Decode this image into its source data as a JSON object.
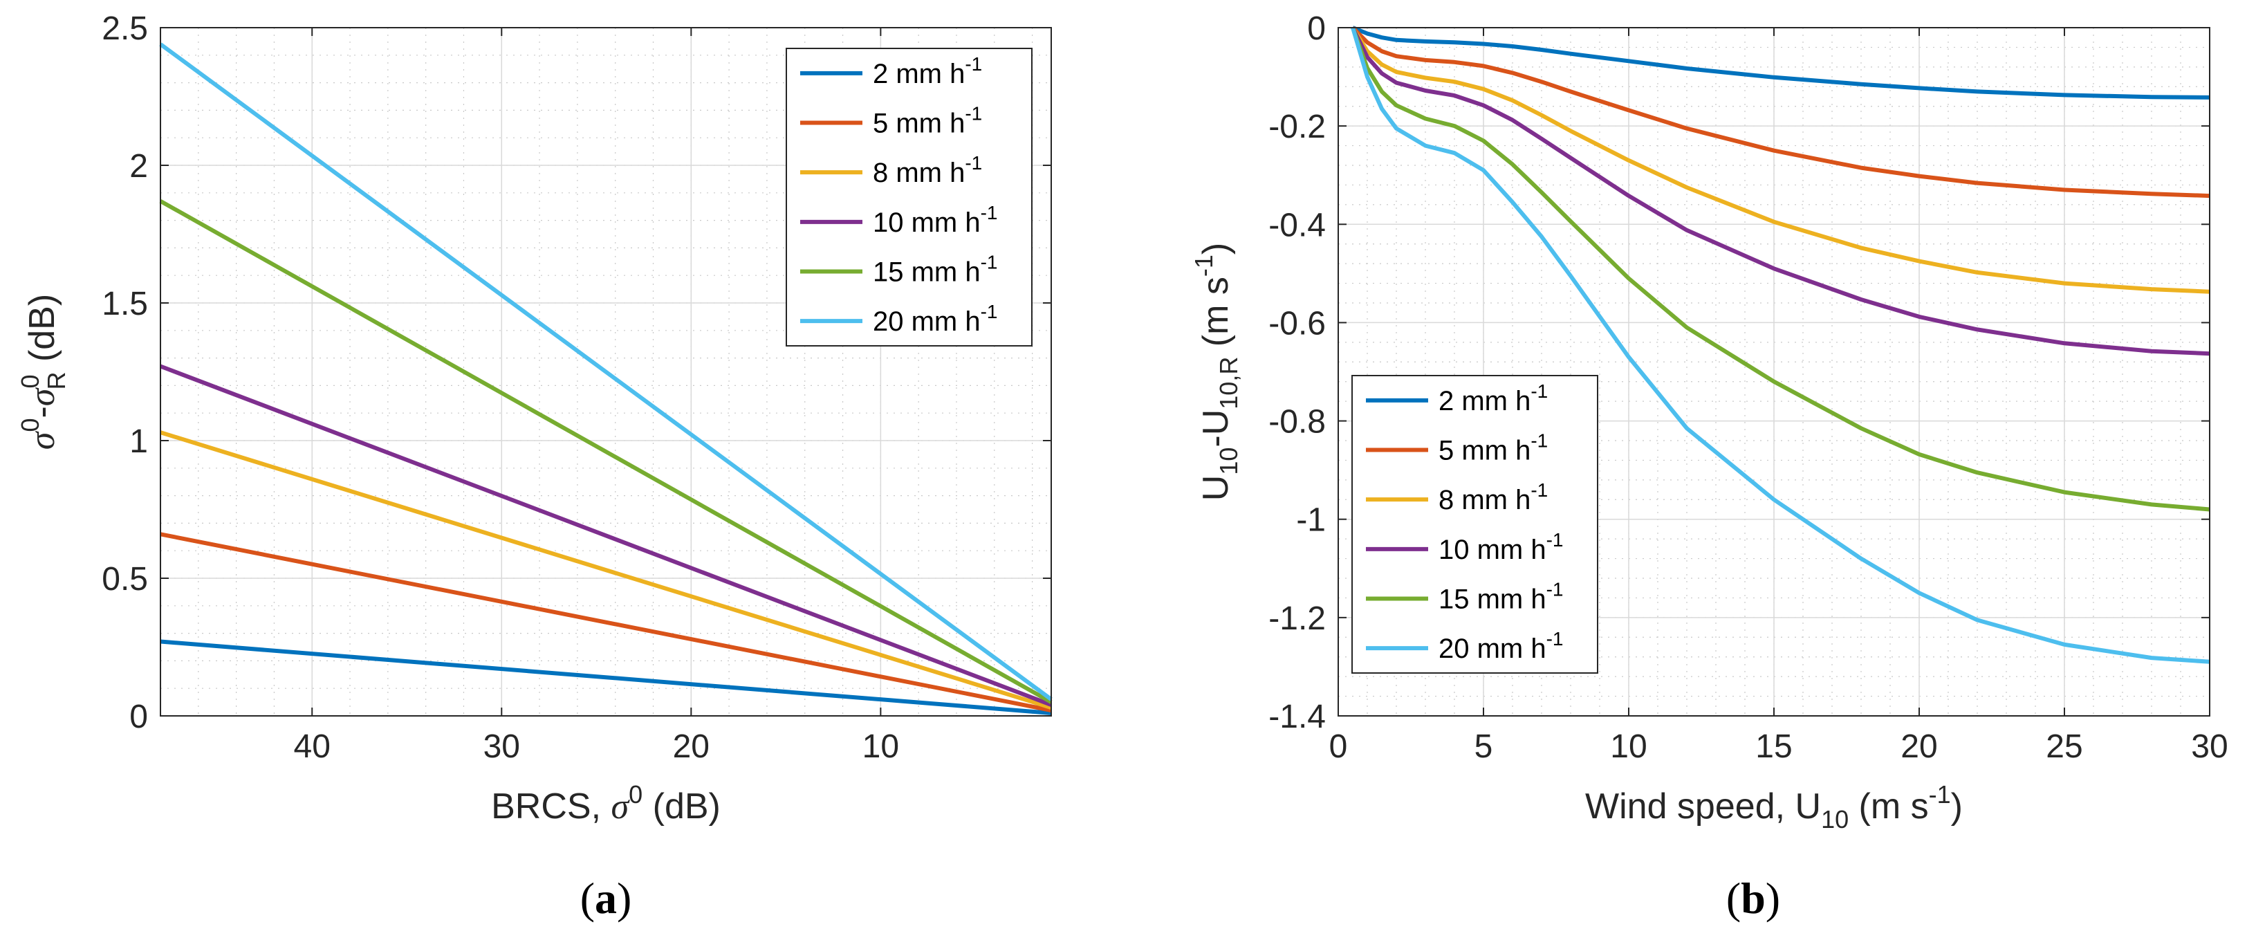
{
  "colors": {
    "2": "#0072BD",
    "5": "#D95319",
    "8": "#EDB120",
    "10": "#7E2F8E",
    "15": "#77AC30",
    "20": "#4DBEEE"
  },
  "chart_data": [
    {
      "type": "line",
      "panel_label": "a",
      "xlabel": {
        "main": "BRCS, ",
        "sym": "σ",
        "sup": "0",
        "post": " (dB)"
      },
      "ylabel": {
        "sym1": "σ",
        "sup1": "0",
        "mid": "-",
        "sym2": "σ",
        "sup2": "0",
        "sub2": "R",
        "post": " (dB)"
      },
      "xlim": [
        1,
        48
      ],
      "x_reversed": true,
      "ylim": [
        0,
        2.5
      ],
      "xticks": [
        40,
        30,
        20,
        10
      ],
      "yticks": [
        0,
        0.5,
        1,
        1.5,
        2,
        2.5
      ],
      "xtick_labels": [
        "40",
        "30",
        "20",
        "10"
      ],
      "ytick_labels": [
        "0",
        "0.5",
        "1",
        "1.5",
        "2",
        "2.5"
      ],
      "grid": true,
      "minor_grid": true,
      "legend_position": "top-right",
      "series": [
        {
          "name": "2 mm h",
          "sup": "-1",
          "key": "2",
          "x": [
            48,
            1
          ],
          "y": [
            0.27,
            0.01
          ]
        },
        {
          "name": "5 mm h",
          "sup": "-1",
          "key": "5",
          "x": [
            48,
            1
          ],
          "y": [
            0.66,
            0.02
          ]
        },
        {
          "name": "8 mm h",
          "sup": "-1",
          "key": "8",
          "x": [
            48,
            1
          ],
          "y": [
            1.03,
            0.03
          ]
        },
        {
          "name": "10 mm h",
          "sup": "-1",
          "key": "10",
          "x": [
            48,
            1
          ],
          "y": [
            1.27,
            0.04
          ]
        },
        {
          "name": "15 mm h",
          "sup": "-1",
          "key": "15",
          "x": [
            48,
            1
          ],
          "y": [
            1.87,
            0.05
          ]
        },
        {
          "name": "20 mm h",
          "sup": "-1",
          "key": "20",
          "x": [
            48,
            1
          ],
          "y": [
            2.44,
            0.06
          ]
        }
      ]
    },
    {
      "type": "line",
      "panel_label": "b",
      "xlabel": {
        "main": "Wind speed, U",
        "sub": "10",
        "mid": " (m s",
        "sup": "-1",
        "post": ")"
      },
      "ylabel": {
        "main": "U",
        "sub1": "10",
        "mid": "-U",
        "sub2": "10,R",
        "post1": " (m s",
        "sup": "-1",
        "post2": ")"
      },
      "xlim": [
        0,
        30
      ],
      "ylim": [
        -1.4,
        0
      ],
      "xticks": [
        0,
        5,
        10,
        15,
        20,
        25,
        30
      ],
      "yticks": [
        0,
        -0.2,
        -0.4,
        -0.6,
        -0.8,
        -1,
        -1.2,
        -1.4
      ],
      "xtick_labels": [
        "0",
        "5",
        "10",
        "15",
        "20",
        "25",
        "30"
      ],
      "ytick_labels": [
        "0",
        "-0.2",
        "-0.4",
        "-0.6",
        "-0.8",
        "-1",
        "-1.2",
        "-1.4"
      ],
      "grid": true,
      "minor_grid": true,
      "legend_position": "bottom-left",
      "series": [
        {
          "name": "2 mm h",
          "sup": "-1",
          "key": "2",
          "x": [
            0.5,
            1,
            1.5,
            2,
            3,
            4,
            5,
            6,
            7,
            8,
            10,
            12,
            15,
            18,
            20,
            22,
            25,
            28,
            30
          ],
          "y": [
            0,
            -0.012,
            -0.02,
            -0.025,
            -0.028,
            -0.03,
            -0.033,
            -0.038,
            -0.045,
            -0.053,
            -0.068,
            -0.083,
            -0.101,
            -0.115,
            -0.123,
            -0.13,
            -0.137,
            -0.141,
            -0.142
          ]
        },
        {
          "name": "5 mm h",
          "sup": "-1",
          "key": "5",
          "x": [
            0.5,
            1,
            1.5,
            2,
            3,
            4,
            5,
            6,
            7,
            8,
            10,
            12,
            15,
            18,
            20,
            22,
            25,
            28,
            30
          ],
          "y": [
            0,
            -0.03,
            -0.048,
            -0.058,
            -0.066,
            -0.07,
            -0.078,
            -0.092,
            -0.11,
            -0.13,
            -0.168,
            -0.205,
            -0.25,
            -0.285,
            -0.302,
            -0.316,
            -0.33,
            -0.338,
            -0.342
          ]
        },
        {
          "name": "8 mm h",
          "sup": "-1",
          "key": "8",
          "x": [
            0.5,
            1,
            1.5,
            2,
            3,
            4,
            5,
            6,
            7,
            8,
            10,
            12,
            15,
            18,
            20,
            22,
            25,
            28,
            30
          ],
          "y": [
            0,
            -0.048,
            -0.075,
            -0.09,
            -0.102,
            -0.11,
            -0.125,
            -0.148,
            -0.178,
            -0.21,
            -0.27,
            -0.325,
            -0.395,
            -0.448,
            -0.475,
            -0.498,
            -0.52,
            -0.532,
            -0.537
          ]
        },
        {
          "name": "10 mm h",
          "sup": "-1",
          "key": "10",
          "x": [
            0.5,
            1,
            1.5,
            2,
            3,
            4,
            5,
            6,
            7,
            8,
            10,
            12,
            15,
            18,
            20,
            22,
            25,
            28,
            30
          ],
          "y": [
            0,
            -0.06,
            -0.093,
            -0.112,
            -0.128,
            -0.138,
            -0.158,
            -0.188,
            -0.226,
            -0.265,
            -0.342,
            -0.412,
            -0.49,
            -0.553,
            -0.588,
            -0.614,
            -0.642,
            -0.658,
            -0.663
          ]
        },
        {
          "name": "15 mm h",
          "sup": "-1",
          "key": "15",
          "x": [
            0.5,
            1,
            1.5,
            2,
            3,
            4,
            5,
            6,
            7,
            8,
            10,
            12,
            15,
            18,
            20,
            22,
            25,
            28,
            30
          ],
          "y": [
            0,
            -0.082,
            -0.13,
            -0.158,
            -0.185,
            -0.2,
            -0.23,
            -0.278,
            -0.335,
            -0.394,
            -0.51,
            -0.61,
            -0.72,
            -0.815,
            -0.868,
            -0.905,
            -0.945,
            -0.97,
            -0.98
          ]
        },
        {
          "name": "20 mm h",
          "sup": "-1",
          "key": "20",
          "x": [
            0.5,
            1,
            1.5,
            2,
            3,
            4,
            5,
            6,
            7,
            8,
            10,
            12,
            15,
            18,
            20,
            22,
            25,
            28,
            30
          ],
          "y": [
            0,
            -0.1,
            -0.165,
            -0.205,
            -0.24,
            -0.255,
            -0.29,
            -0.355,
            -0.425,
            -0.505,
            -0.67,
            -0.815,
            -0.96,
            -1.08,
            -1.15,
            -1.205,
            -1.255,
            -1.282,
            -1.29
          ]
        }
      ]
    }
  ]
}
